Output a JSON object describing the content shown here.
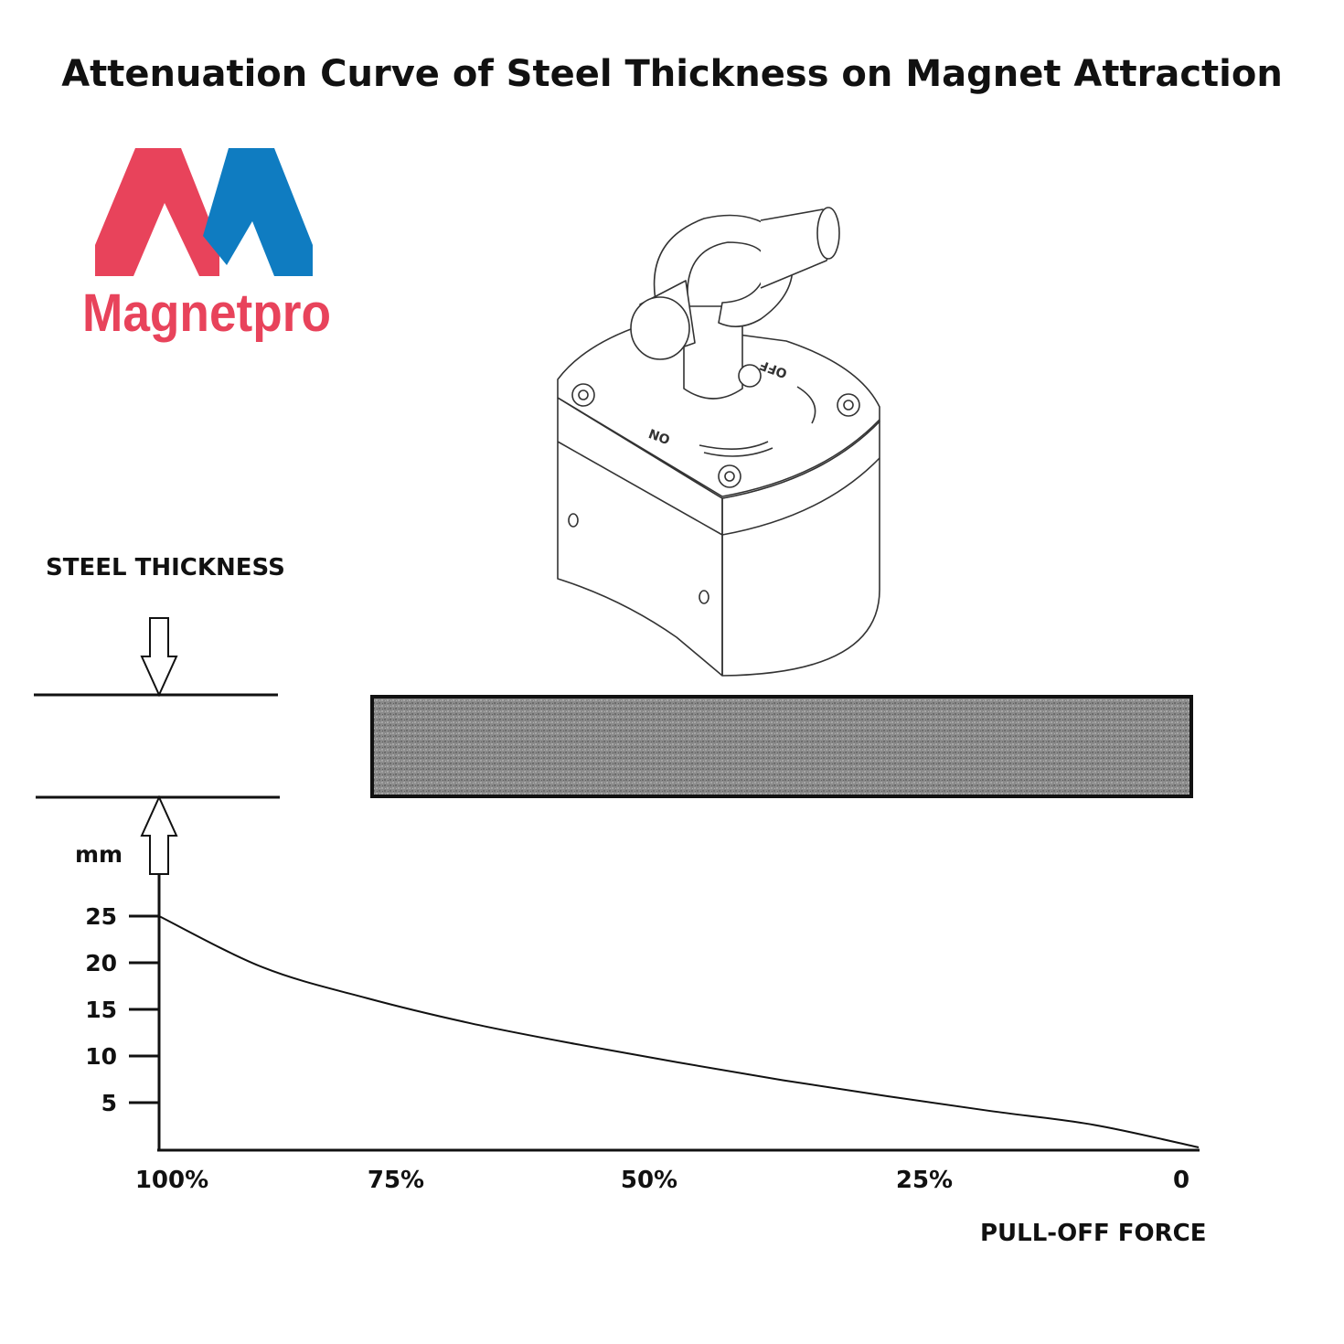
{
  "title": "Attenuation Curve of Steel Thickness on Magnet Attraction",
  "logo": {
    "text": "Magnetpro",
    "colors": {
      "red": "#e8435b",
      "blue": "#0f7cc1"
    }
  },
  "labels": {
    "steel_thickness": "STEEL THICKNESS",
    "unit": "mm",
    "pull_off_force": "PULL-OFF FORCE"
  },
  "device": {
    "off_label": "OFF",
    "on_label": "ON"
  },
  "chart_data": {
    "type": "line",
    "x_tick_labels": [
      "100%",
      "75%",
      "50%",
      "25%",
      "0"
    ],
    "x_tick_values": [
      100,
      75,
      50,
      25,
      0
    ],
    "y_ticks": [
      5,
      10,
      15,
      20,
      25
    ],
    "xlabel": "PULL-OFF FORCE",
    "ylabel": "mm",
    "xlim": [
      100,
      0
    ],
    "ylim": [
      0,
      25
    ],
    "grid": false,
    "series": [
      {
        "x": [
          100,
          90,
          80,
          70,
          60,
          50,
          40,
          30,
          20,
          10,
          0
        ],
        "values": [
          25,
          19.5,
          16.2,
          13.5,
          11.3,
          9.3,
          7.4,
          5.7,
          4.1,
          2.6,
          0.2
        ]
      }
    ]
  }
}
